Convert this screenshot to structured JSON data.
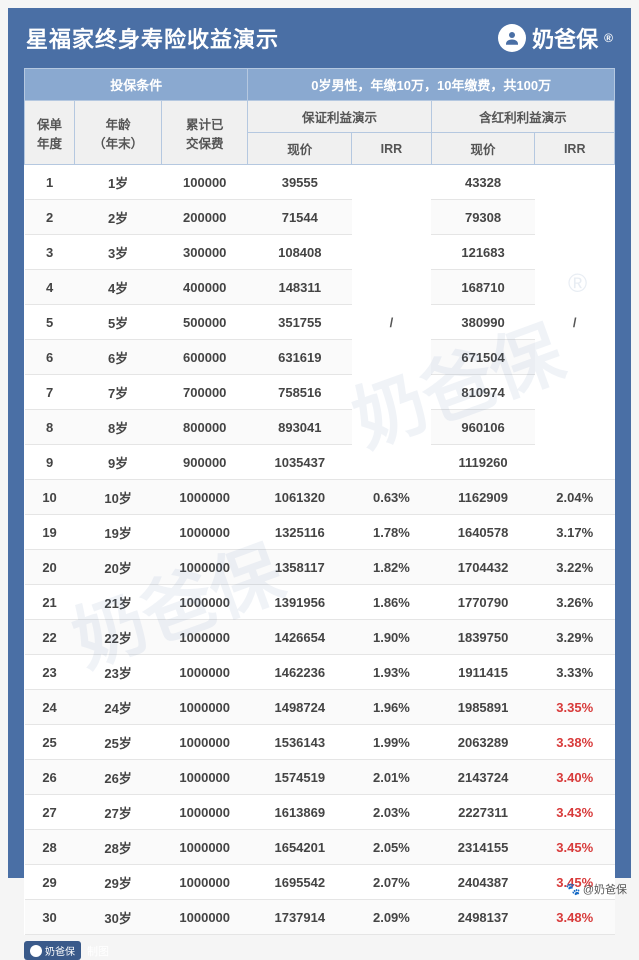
{
  "header": {
    "title": "星福家终身寿险收益演示",
    "brand": "奶爸保",
    "reg": "®"
  },
  "table": {
    "group_left": "投保条件",
    "group_right": "0岁男性，年缴10万，10年缴费，共100万",
    "cols": {
      "year": "保单\n年度",
      "age": "年龄\n（年末）",
      "premium": "累计已\n交保费",
      "guaranteed": "保证利益演示",
      "dividend": "含红利利益演示",
      "cv": "现价",
      "irr": "IRR"
    },
    "slash": "/",
    "rows": [
      {
        "y": "1",
        "a": "1岁",
        "p": "100000",
        "gcv": "39555",
        "girr": "",
        "dcv": "43328",
        "dirr": "",
        "slash": true
      },
      {
        "y": "2",
        "a": "2岁",
        "p": "200000",
        "gcv": "71544",
        "girr": "",
        "dcv": "79308",
        "dirr": "",
        "slash": true
      },
      {
        "y": "3",
        "a": "3岁",
        "p": "300000",
        "gcv": "108408",
        "girr": "",
        "dcv": "121683",
        "dirr": "",
        "slash": true
      },
      {
        "y": "4",
        "a": "4岁",
        "p": "400000",
        "gcv": "148311",
        "girr": "",
        "dcv": "168710",
        "dirr": "",
        "slash": true
      },
      {
        "y": "5",
        "a": "5岁",
        "p": "500000",
        "gcv": "351755",
        "girr": "",
        "dcv": "380990",
        "dirr": "",
        "slash": true
      },
      {
        "y": "6",
        "a": "6岁",
        "p": "600000",
        "gcv": "631619",
        "girr": "",
        "dcv": "671504",
        "dirr": "",
        "slash": true
      },
      {
        "y": "7",
        "a": "7岁",
        "p": "700000",
        "gcv": "758516",
        "girr": "",
        "dcv": "810974",
        "dirr": "",
        "slash": true
      },
      {
        "y": "8",
        "a": "8岁",
        "p": "800000",
        "gcv": "893041",
        "girr": "",
        "dcv": "960106",
        "dirr": "",
        "slash": true
      },
      {
        "y": "9",
        "a": "9岁",
        "p": "900000",
        "gcv": "1035437",
        "girr": "",
        "dcv": "1119260",
        "dirr": "",
        "slash": true
      },
      {
        "y": "10",
        "a": "10岁",
        "p": "1000000",
        "gcv": "1061320",
        "girr": "0.63%",
        "dcv": "1162909",
        "dirr": "2.04%"
      },
      {
        "y": "19",
        "a": "19岁",
        "p": "1000000",
        "gcv": "1325116",
        "girr": "1.78%",
        "dcv": "1640578",
        "dirr": "3.17%"
      },
      {
        "y": "20",
        "a": "20岁",
        "p": "1000000",
        "gcv": "1358117",
        "girr": "1.82%",
        "dcv": "1704432",
        "dirr": "3.22%"
      },
      {
        "y": "21",
        "a": "21岁",
        "p": "1000000",
        "gcv": "1391956",
        "girr": "1.86%",
        "dcv": "1770790",
        "dirr": "3.26%"
      },
      {
        "y": "22",
        "a": "22岁",
        "p": "1000000",
        "gcv": "1426654",
        "girr": "1.90%",
        "dcv": "1839750",
        "dirr": "3.29%"
      },
      {
        "y": "23",
        "a": "23岁",
        "p": "1000000",
        "gcv": "1462236",
        "girr": "1.93%",
        "dcv": "1911415",
        "dirr": "3.33%"
      },
      {
        "y": "24",
        "a": "24岁",
        "p": "1000000",
        "gcv": "1498724",
        "girr": "1.96%",
        "dcv": "1985891",
        "dirr": "3.35%",
        "red": true
      },
      {
        "y": "25",
        "a": "25岁",
        "p": "1000000",
        "gcv": "1536143",
        "girr": "1.99%",
        "dcv": "2063289",
        "dirr": "3.38%",
        "red": true
      },
      {
        "y": "26",
        "a": "26岁",
        "p": "1000000",
        "gcv": "1574519",
        "girr": "2.01%",
        "dcv": "2143724",
        "dirr": "3.40%",
        "red": true
      },
      {
        "y": "27",
        "a": "27岁",
        "p": "1000000",
        "gcv": "1613869",
        "girr": "2.03%",
        "dcv": "2227311",
        "dirr": "3.43%",
        "red": true
      },
      {
        "y": "28",
        "a": "28岁",
        "p": "1000000",
        "gcv": "1654201",
        "girr": "2.05%",
        "dcv": "2314155",
        "dirr": "3.45%",
        "red": true
      },
      {
        "y": "29",
        "a": "29岁",
        "p": "1000000",
        "gcv": "1695542",
        "girr": "2.07%",
        "dcv": "2404387",
        "dirr": "3.45%",
        "red": true
      },
      {
        "y": "30",
        "a": "30岁",
        "p": "1000000",
        "gcv": "1737914",
        "girr": "2.09%",
        "dcv": "2498137",
        "dirr": "3.48%",
        "red": true
      }
    ]
  },
  "footer": {
    "badge_brand": "奶爸保",
    "label": "制图"
  },
  "watermark": "奶爸保",
  "credit": "@奶爸保",
  "colors": {
    "card_bg": "#4a6fa5",
    "header_bg": "#8aa9d0",
    "red": "#d83a3a"
  }
}
